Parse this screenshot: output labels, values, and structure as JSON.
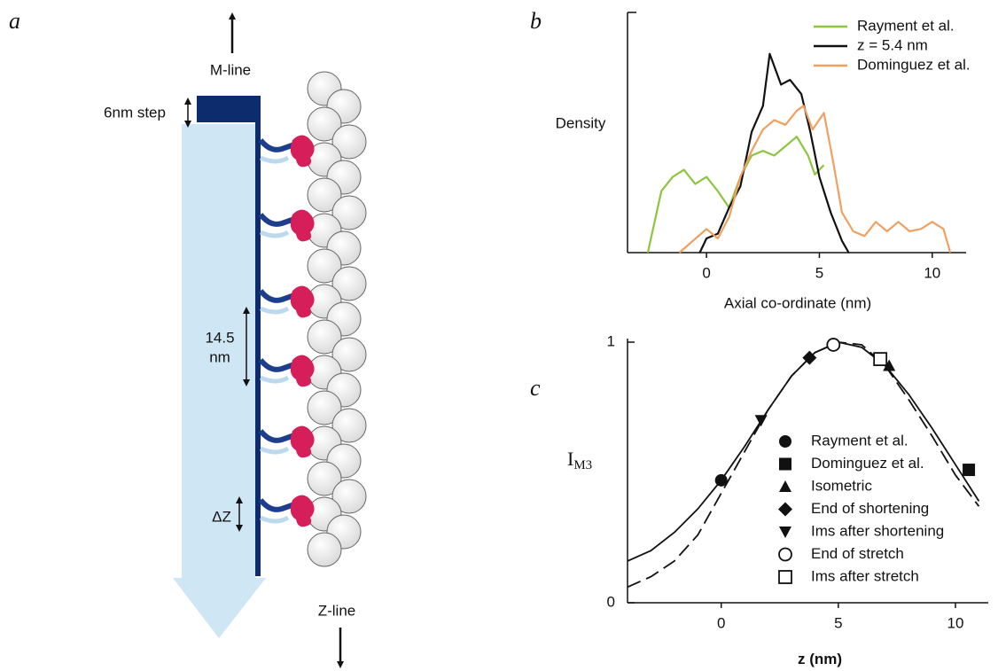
{
  "panel_a": {
    "label": "a",
    "m_line": "M-line",
    "step": "6nm step",
    "spacing": [
      "14.5",
      "nm"
    ],
    "delta": "ΔZ",
    "z_line": "Z-line"
  },
  "chart_data": [
    {
      "type": "line",
      "panel": "b",
      "x_label": "Axial co-ordinate (nm)",
      "y_label": "Density",
      "xlim": [
        -3.5,
        11.5
      ],
      "ylim": [
        0,
        1
      ],
      "xticks": [
        0,
        5,
        10
      ],
      "legend": "upper right",
      "series": [
        {
          "name": "Rayment et al.",
          "color": "#8cc63f",
          "x": [
            -2.6,
            -2,
            -1.5,
            -1,
            -0.5,
            0,
            0.5,
            1,
            1.5,
            2,
            2.5,
            3,
            3.5,
            4,
            4.5,
            4.8,
            5.2
          ],
          "values": [
            0,
            0.26,
            0.32,
            0.35,
            0.29,
            0.32,
            0.26,
            0.19,
            0.32,
            0.41,
            0.43,
            0.41,
            0.45,
            0.49,
            0.41,
            0.33,
            0.37
          ]
        },
        {
          "name": "z = 5.4 nm",
          "color": "#111111",
          "x": [
            -0.3,
            0,
            0.5,
            1,
            1.5,
            2,
            2.5,
            2.8,
            3.3,
            3.7,
            4.2,
            4.6,
            5,
            5.5,
            6,
            6.3
          ],
          "values": [
            0,
            0.06,
            0.08,
            0.19,
            0.28,
            0.51,
            0.62,
            0.84,
            0.71,
            0.73,
            0.67,
            0.51,
            0.32,
            0.17,
            0.05,
            0
          ]
        },
        {
          "name": "Dominguez et al.",
          "color": "#f0a060",
          "x": [
            -1.2,
            0,
            0.5,
            1,
            1.5,
            2,
            2.5,
            3,
            3.5,
            4,
            4.3,
            4.7,
            5.2,
            5.6,
            6,
            6.5,
            7,
            7.5,
            8,
            8.5,
            9,
            9.5,
            10,
            10.5,
            10.8
          ],
          "values": [
            0,
            0.1,
            0.06,
            0.15,
            0.32,
            0.43,
            0.52,
            0.56,
            0.54,
            0.6,
            0.62,
            0.52,
            0.59,
            0.39,
            0.17,
            0.09,
            0.07,
            0.13,
            0.09,
            0.13,
            0.09,
            0.1,
            0.13,
            0.1,
            0
          ]
        }
      ]
    },
    {
      "type": "scatter",
      "panel": "c",
      "x_label": "z (nm)",
      "y_label": "I",
      "y_label_subscript": "M3",
      "xlim": [
        -4,
        11.4
      ],
      "ylim": [
        0,
        1
      ],
      "xticks": [
        0,
        5,
        10
      ],
      "yticks": [
        0,
        1
      ],
      "curves": [
        {
          "style": "solid",
          "color": "#111111",
          "x": [
            -4,
            -3,
            -2,
            -1,
            0,
            1,
            2,
            3,
            4,
            5,
            6,
            7,
            8,
            9,
            10,
            11
          ],
          "values": [
            0.16,
            0.2,
            0.27,
            0.36,
            0.47,
            0.6,
            0.74,
            0.87,
            0.96,
            1.0,
            0.98,
            0.91,
            0.8,
            0.67,
            0.53,
            0.39
          ]
        },
        {
          "style": "dashed",
          "color": "#111111",
          "x": [
            -4,
            -3,
            -2,
            -1,
            0,
            1,
            2,
            3,
            4,
            5,
            6,
            7,
            8,
            9,
            10,
            11
          ],
          "values": [
            0.06,
            0.1,
            0.16,
            0.26,
            0.42,
            0.58,
            0.74,
            0.87,
            0.96,
            1.0,
            0.99,
            0.91,
            0.78,
            0.64,
            0.49,
            0.37
          ]
        }
      ],
      "series": [
        {
          "name": "Rayment et al.",
          "marker": "circle",
          "color": "#111111",
          "x": [
            0
          ],
          "values": [
            0.47
          ]
        },
        {
          "name": "Dominguez et al.",
          "marker": "square",
          "color": "#111111",
          "x": [
            10.57
          ],
          "values": [
            0.51
          ]
        },
        {
          "name": "Isometric",
          "marker": "triangle",
          "color": "#111111",
          "x": [
            7.17
          ],
          "values": [
            0.91
          ]
        },
        {
          "name": "End of shortening",
          "marker": "diamond",
          "color": "#111111",
          "x": [
            3.77
          ],
          "values": [
            0.94
          ]
        },
        {
          "name": "Ims after shortening",
          "marker": "triangle-down",
          "color": "#111111",
          "x": [
            1.7
          ],
          "values": [
            0.7
          ]
        },
        {
          "name": "End of stretch",
          "marker": "open-circle",
          "color": "#111111",
          "x": [
            4.79
          ],
          "values": [
            0.99
          ]
        },
        {
          "name": "Ims after stretch",
          "marker": "open-square",
          "color": "#111111",
          "x": [
            6.79
          ],
          "values": [
            0.935
          ]
        }
      ]
    }
  ]
}
